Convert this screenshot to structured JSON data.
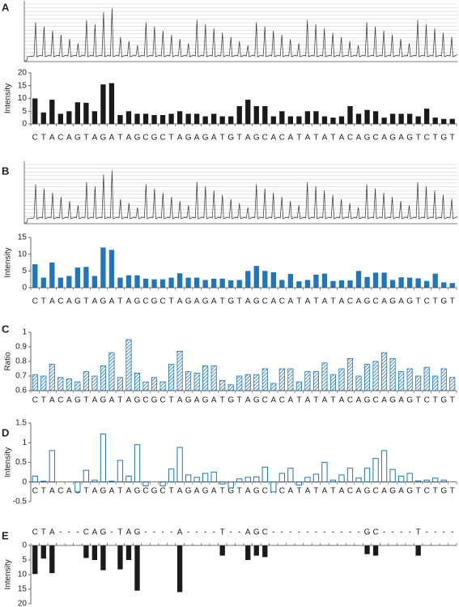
{
  "chart_data": [
    {
      "type": "bar",
      "panel": "A",
      "ylabel": "Intensity",
      "color": "#1a1a1a",
      "bar_style": "solid",
      "categories": [
        "C",
        "T",
        "A",
        "C",
        "A",
        "G",
        "T",
        "A",
        "G",
        "A",
        "T",
        "A",
        "G",
        "C",
        "G",
        "C",
        "T",
        "A",
        "G",
        "A",
        "G",
        "A",
        "T",
        "G",
        "T",
        "A",
        "G",
        "C",
        "A",
        "C",
        "A",
        "T",
        "A",
        "T",
        "A",
        "T",
        "A",
        "C",
        "A",
        "G",
        "C",
        "A",
        "G",
        "A",
        "G",
        "T",
        "C",
        "T",
        "G",
        "T"
      ],
      "values": [
        10,
        4.5,
        9.5,
        4,
        5,
        8.5,
        8.3,
        5,
        15.5,
        16,
        3.5,
        5,
        4,
        4,
        3.5,
        3.5,
        4,
        5,
        4,
        4,
        3,
        4,
        3,
        3,
        7,
        9.5,
        7,
        7,
        3,
        5,
        3,
        3,
        5,
        5,
        3,
        2.5,
        3,
        7,
        4,
        5.5,
        5,
        2.5,
        4,
        4,
        4,
        3,
        6,
        2.5,
        2,
        2
      ],
      "ylim": [
        0,
        20
      ],
      "yticks": [
        0,
        5,
        10,
        15,
        20
      ]
    },
    {
      "type": "bar",
      "panel": "B",
      "ylabel": "Intensity",
      "color": "#2175bc",
      "bar_style": "solid",
      "categories": [
        "C",
        "T",
        "A",
        "C",
        "A",
        "G",
        "T",
        "A",
        "G",
        "A",
        "T",
        "A",
        "G",
        "C",
        "G",
        "C",
        "T",
        "A",
        "G",
        "A",
        "G",
        "A",
        "T",
        "G",
        "T",
        "A",
        "G",
        "C",
        "A",
        "C",
        "A",
        "T",
        "A",
        "T",
        "A",
        "T",
        "A",
        "C",
        "A",
        "G",
        "C",
        "A",
        "G",
        "A",
        "G",
        "T",
        "C",
        "T",
        "G",
        "T"
      ],
      "values": [
        7,
        3,
        7.5,
        3,
        3.5,
        6,
        6.2,
        3.5,
        12,
        11.3,
        3,
        3.7,
        3.7,
        2.7,
        2.5,
        2.5,
        3,
        4.3,
        3,
        3,
        2.3,
        2.7,
        2.7,
        2.2,
        2.3,
        5,
        6.5,
        5,
        4.6,
        2.3,
        4.1,
        1.9,
        2.3,
        3.9,
        4.2,
        2,
        2.2,
        2.2,
        5,
        3.2,
        4.5,
        4.5,
        2.3,
        3.1,
        3,
        2.8,
        2,
        4.2,
        1.6,
        1.4
      ],
      "ylim": [
        0,
        15
      ],
      "yticks": [
        0,
        5,
        10,
        15
      ]
    },
    {
      "type": "bar",
      "panel": "C",
      "ylabel": "Ratio",
      "color": "#2175bc",
      "bar_style": "hatched",
      "categories": [
        "C",
        "T",
        "A",
        "C",
        "A",
        "G",
        "T",
        "A",
        "G",
        "A",
        "T",
        "A",
        "G",
        "C",
        "G",
        "C",
        "T",
        "A",
        "G",
        "A",
        "G",
        "A",
        "T",
        "G",
        "T",
        "A",
        "G",
        "C",
        "A",
        "C",
        "A",
        "T",
        "A",
        "T",
        "A",
        "T",
        "A",
        "C",
        "A",
        "G",
        "C",
        "A",
        "G",
        "A",
        "G",
        "T",
        "C",
        "T",
        "G",
        "T"
      ],
      "values": [
        0.71,
        0.7,
        0.78,
        0.69,
        0.68,
        0.66,
        0.73,
        0.7,
        0.77,
        0.86,
        0.69,
        0.95,
        0.72,
        0.66,
        0.69,
        0.66,
        0.78,
        0.87,
        0.73,
        0.72,
        0.77,
        0.77,
        0.67,
        0.64,
        0.7,
        0.71,
        0.71,
        0.75,
        0.65,
        0.75,
        0.75,
        0.66,
        0.73,
        0.73,
        0.79,
        0.71,
        0.75,
        0.82,
        0.7,
        0.78,
        0.8,
        0.86,
        0.82,
        0.73,
        0.75,
        0.7,
        0.76,
        0.7,
        0.75,
        0.69
      ],
      "ylim": [
        0.6,
        1
      ],
      "yticks": [
        0.6,
        0.7,
        0.8,
        0.9,
        1
      ]
    },
    {
      "type": "bar",
      "panel": "D",
      "ylabel": "Intensity",
      "color": "#2175bc",
      "bar_style": "outline",
      "categories": [
        "C",
        "T",
        "A",
        "C",
        "A",
        "G",
        "T",
        "A",
        "G",
        "A",
        "T",
        "A",
        "G",
        "C",
        "G",
        "C",
        "T",
        "A",
        "G",
        "A",
        "G",
        "A",
        "T",
        "G",
        "T",
        "A",
        "G",
        "C",
        "A",
        "C",
        "A",
        "T",
        "A",
        "T",
        "A",
        "T",
        "A",
        "C",
        "A",
        "G",
        "C",
        "A",
        "G",
        "A",
        "G",
        "T",
        "C",
        "T",
        "G",
        "T"
      ],
      "values": [
        0.15,
        0.02,
        0.8,
        0,
        0,
        -0.25,
        0.3,
        0.05,
        1.22,
        0.02,
        0.55,
        0.15,
        0.95,
        -0.1,
        0,
        -0.1,
        0.33,
        0.88,
        0.18,
        0.12,
        0.22,
        0.25,
        -0.05,
        -0.15,
        0.08,
        0.12,
        0.13,
        0.38,
        -0.25,
        0.22,
        0.35,
        -0.08,
        0.12,
        0.2,
        0.5,
        0.05,
        0.18,
        0.35,
        0.1,
        0.35,
        0.6,
        0.8,
        0.32,
        0.15,
        0.22,
        0.03,
        0.05,
        0.1,
        0.05,
        0
      ],
      "ylim": [
        -0.5,
        1.5
      ],
      "yticks": [
        -0.5,
        0,
        0.5,
        1,
        1.5
      ]
    },
    {
      "type": "bar",
      "panel": "E",
      "ylabel": "Intensity",
      "color": "#1a1a1a",
      "bar_style": "solid",
      "y_inverted": true,
      "categories": [
        "C",
        "T",
        "A",
        "-",
        "-",
        "-",
        "C",
        "A",
        "G",
        "-",
        "T",
        "A",
        "G",
        "-",
        "-",
        "-",
        "-",
        "A",
        "-",
        "-",
        "-",
        "-",
        "T",
        "-",
        "-",
        "A",
        "G",
        "C",
        "-",
        "-",
        "-",
        "-",
        "-",
        "-",
        "-",
        "-",
        "-",
        "-",
        "-",
        "G",
        "C",
        "-",
        "-",
        "-",
        "-",
        "T",
        "-",
        "-",
        "-",
        "-"
      ],
      "values": [
        9.8,
        4.5,
        9.5,
        null,
        null,
        null,
        4.3,
        5,
        8.5,
        null,
        8.2,
        5,
        15.5,
        null,
        null,
        null,
        null,
        16,
        null,
        null,
        null,
        null,
        3.5,
        null,
        null,
        5,
        3.5,
        4,
        null,
        null,
        null,
        null,
        null,
        null,
        null,
        null,
        null,
        null,
        null,
        3,
        3.5,
        null,
        null,
        null,
        null,
        3.5,
        null,
        null,
        null,
        null
      ],
      "ylim": [
        0,
        20
      ],
      "yticks": [
        0,
        5,
        10,
        15,
        20
      ]
    }
  ]
}
